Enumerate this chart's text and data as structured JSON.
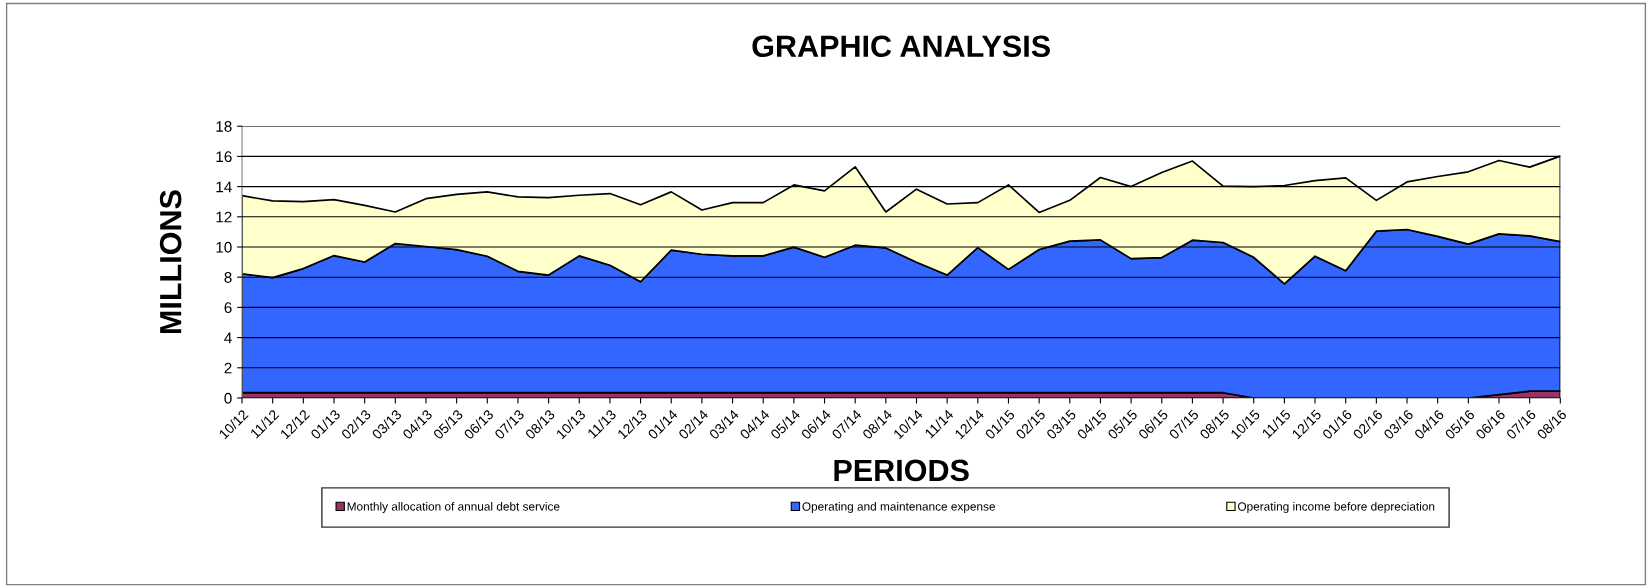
{
  "chart_data": {
    "type": "area",
    "stacked": true,
    "title": "GRAPHIC ANALYSIS",
    "xlabel": "PERIODS",
    "ylabel": "MILLIONS",
    "categories": [
      "10/12",
      "11/12",
      "12/12",
      "01/13",
      "02/13",
      "03/13",
      "04/13",
      "05/13",
      "06/13",
      "07/13",
      "08/13",
      "10/13",
      "11/13",
      "12/13",
      "01/14",
      "02/14",
      "03/14",
      "04/14",
      "05/14",
      "06/14",
      "07/14",
      "08/14",
      "10/14",
      "11/14",
      "12/14",
      "01/15",
      "02/15",
      "03/15",
      "04/15",
      "05/15",
      "06/15",
      "07/15",
      "08/15",
      "10/15",
      "11/15",
      "12/15",
      "01/16",
      "02/16",
      "03/16",
      "04/16",
      "05/16",
      "06/16",
      "07/16",
      "08/16"
    ],
    "series": [
      {
        "name": "Monthly allocation of annual debt service",
        "color": "#993366",
        "values": [
          0.35,
          0.35,
          0.35,
          0.35,
          0.35,
          0.35,
          0.35,
          0.35,
          0.35,
          0.35,
          0.35,
          0.35,
          0.35,
          0.35,
          0.35,
          0.35,
          0.35,
          0.35,
          0.35,
          0.35,
          0.35,
          0.35,
          0.35,
          0.35,
          0.35,
          0.35,
          0.35,
          0.35,
          0.35,
          0.35,
          0.35,
          0.35,
          0.35,
          0,
          0,
          0,
          0,
          0,
          0,
          0,
          0,
          0.22,
          0.45,
          0.45
        ]
      },
      {
        "name": "Operating and maintenance expense",
        "color": "#3366ff",
        "values": [
          7.88,
          7.62,
          8.22,
          9.08,
          8.66,
          9.88,
          9.68,
          9.48,
          9.04,
          8.04,
          7.79,
          9.06,
          8.44,
          7.35,
          9.44,
          9.17,
          9.06,
          9.06,
          9.64,
          8.97,
          9.77,
          9.59,
          8.64,
          7.79,
          9.61,
          8.17,
          9.48,
          10.04,
          10.12,
          8.88,
          8.95,
          10.1,
          9.95,
          9.32,
          7.55,
          9.39,
          8.43,
          11.05,
          11.16,
          10.7,
          10.19,
          10.65,
          10.29,
          9.91
        ]
      },
      {
        "name": "Operating income before depreciation",
        "color": "#ffffcc",
        "values": [
          5.17,
          5.08,
          4.43,
          3.71,
          3.75,
          2.09,
          3.17,
          3.66,
          4.26,
          4.93,
          5.13,
          4.02,
          4.75,
          5.1,
          3.86,
          2.93,
          3.53,
          3.53,
          4.12,
          4.4,
          5.19,
          2.38,
          4.84,
          4.71,
          2.98,
          5.59,
          2.46,
          2.7,
          4.13,
          4.77,
          5.64,
          5.24,
          3.73,
          4.68,
          6.52,
          5.01,
          6.15,
          2.04,
          3.15,
          3.97,
          4.79,
          4.86,
          4.55,
          5.66
        ]
      }
    ],
    "ylim": [
      0,
      18
    ],
    "yticks": [
      0,
      2,
      4,
      6,
      8,
      10,
      12,
      14,
      16,
      18
    ],
    "grid": "y",
    "legend": "bottom"
  }
}
